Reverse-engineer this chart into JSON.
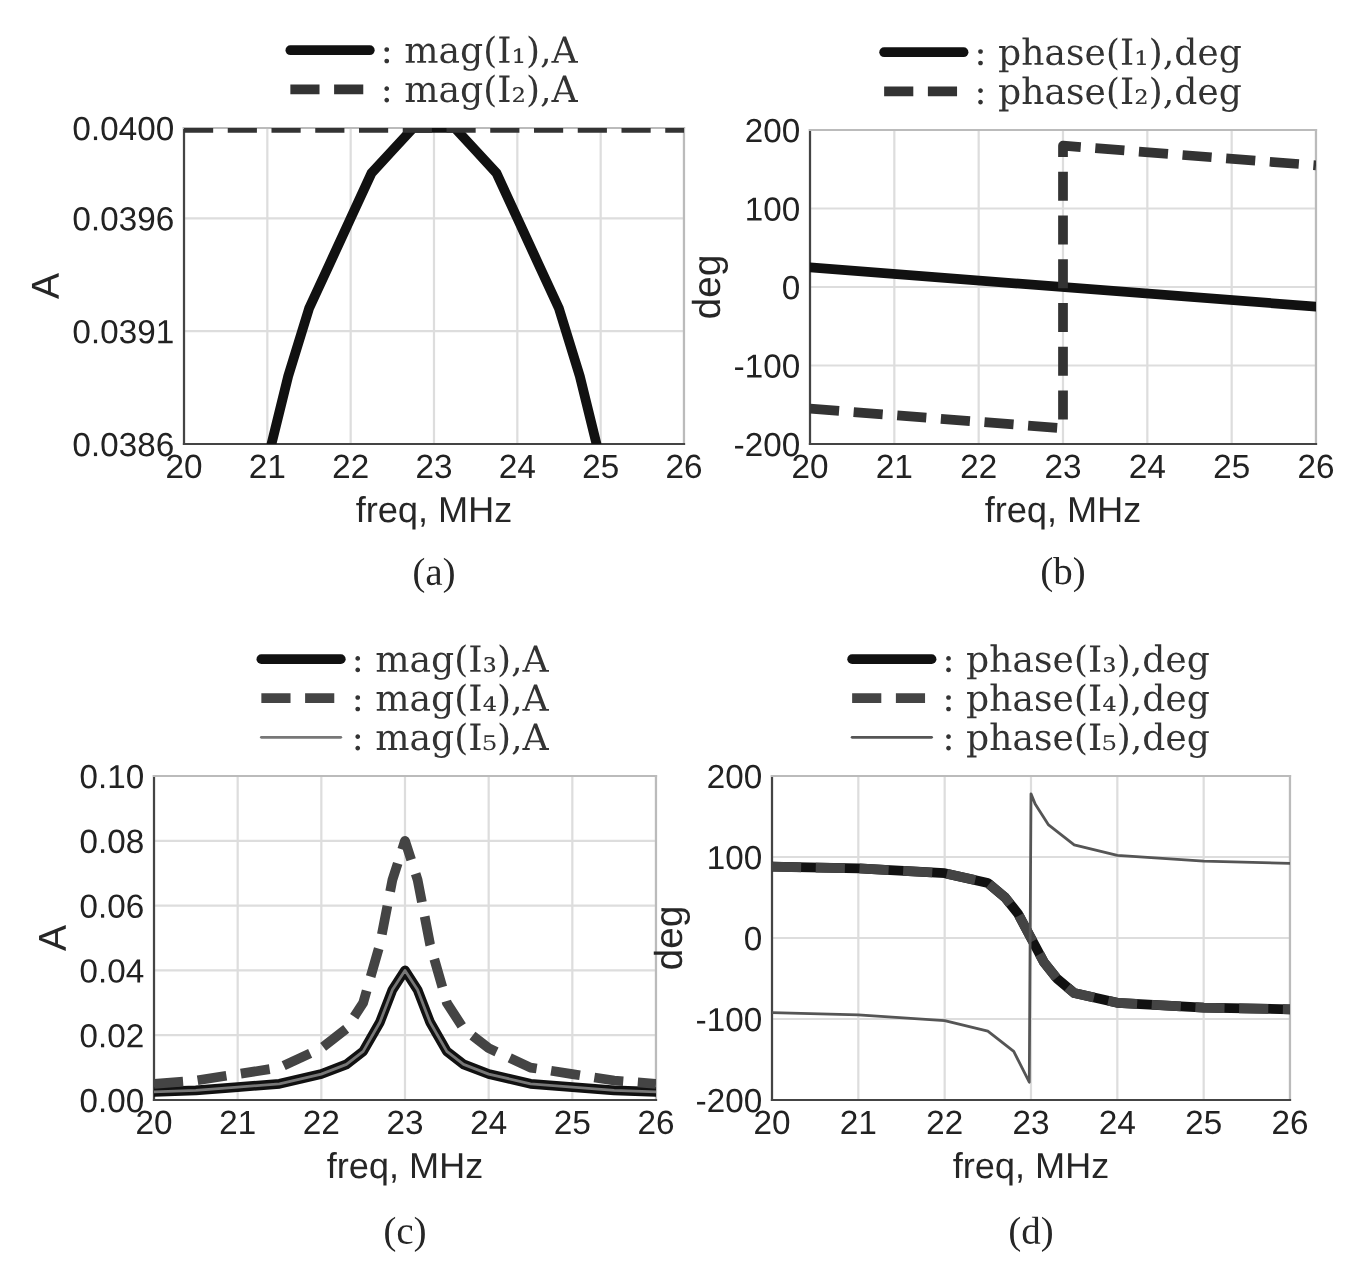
{
  "chart_data": [
    {
      "type": "line",
      "xlabel": "freq, MHz",
      "ylabel": "A",
      "annotations": [
        "(a)"
      ],
      "xlim": [
        20,
        26
      ],
      "xticks": [
        20,
        21,
        22,
        23,
        24,
        25,
        26
      ],
      "ylim": [
        0.0386,
        0.04
      ],
      "yticks": [
        0.0386,
        0.0391,
        0.0396,
        {
          "value": 0.04,
          "label": "0.0400"
        }
      ],
      "grid": true,
      "legend": "top",
      "series": [
        {
          "name": ": mag(I₁),A",
          "color": "#111111",
          "line_style": "solid",
          "x": [
            21.05,
            21.25,
            21.5,
            21.75,
            22,
            22.25,
            22.5,
            22.75,
            23,
            23.25,
            23.5,
            23.75,
            24,
            24.25,
            24.5,
            24.75,
            24.95
          ],
          "values": [
            0.0386,
            0.0389,
            0.0392,
            0.0394,
            0.0396,
            0.0398,
            0.0399,
            0.04,
            0.04,
            0.04,
            0.0399,
            0.0398,
            0.0396,
            0.0394,
            0.0392,
            0.0389,
            0.0386
          ]
        },
        {
          "name": ": mag(I₂),A",
          "color": "#333333",
          "line_style": "dashed",
          "x": [
            20,
            26
          ],
          "values": [
            0.04,
            0.04
          ]
        }
      ]
    },
    {
      "type": "line",
      "xlabel": "freq, MHz",
      "ylabel": "deg",
      "annotations": [
        "(b)"
      ],
      "xlim": [
        20,
        26
      ],
      "xticks": [
        20,
        21,
        22,
        23,
        24,
        25,
        26
      ],
      "ylim": [
        -200,
        200
      ],
      "yticks": [
        -200,
        -100,
        0,
        100,
        200
      ],
      "grid": true,
      "legend": "top",
      "series": [
        {
          "name": ": phase(I₁),deg",
          "color": "#111111",
          "line_style": "solid",
          "x": [
            20,
            26
          ],
          "values": [
            25,
            -25
          ]
        },
        {
          "name": ": phase(I₂),deg",
          "color": "#333333",
          "line_style": "dashed",
          "x": [
            20,
            23,
            23,
            26
          ],
          "values": [
            -155,
            -180,
            180,
            155
          ]
        }
      ]
    },
    {
      "type": "line",
      "xlabel": "freq, MHz",
      "ylabel": "A",
      "annotations": [
        "(c)"
      ],
      "xlim": [
        20,
        26
      ],
      "xticks": [
        20,
        21,
        22,
        23,
        24,
        25,
        26
      ],
      "ylim": [
        0,
        0.1
      ],
      "yticks": [
        {
          "value": 0,
          "label": "0.00"
        },
        0.02,
        0.04,
        0.06,
        0.08,
        {
          "value": 0.1,
          "label": "0.10"
        }
      ],
      "grid": true,
      "legend": "top",
      "series": [
        {
          "name": ": mag(I₃),A",
          "color": "#111111",
          "line_style": "solid",
          "x": [
            20,
            20.5,
            21,
            21.5,
            22,
            22.3,
            22.5,
            22.7,
            22.85,
            23,
            23.15,
            23.3,
            23.5,
            23.7,
            24,
            24.5,
            25,
            25.5,
            26
          ],
          "values": [
            0.0025,
            0.003,
            0.004,
            0.005,
            0.008,
            0.011,
            0.015,
            0.024,
            0.034,
            0.04,
            0.034,
            0.024,
            0.015,
            0.011,
            0.008,
            0.005,
            0.004,
            0.003,
            0.0025
          ]
        },
        {
          "name": ": mag(I₄),A",
          "color": "#444444",
          "line_style": "dashed",
          "x": [
            20,
            20.5,
            21,
            21.5,
            22,
            22.3,
            22.5,
            22.7,
            22.85,
            23,
            23.15,
            23.3,
            23.5,
            23.7,
            24,
            24.5,
            25,
            25.5,
            26
          ],
          "values": [
            0.005,
            0.006,
            0.008,
            0.01,
            0.016,
            0.022,
            0.03,
            0.048,
            0.068,
            0.08,
            0.068,
            0.048,
            0.03,
            0.022,
            0.016,
            0.01,
            0.008,
            0.006,
            0.005
          ]
        },
        {
          "name": ": mag(I₅),A",
          "color": "#777777",
          "line_style": "solid",
          "x": [
            20,
            20.5,
            21,
            21.5,
            22,
            22.3,
            22.5,
            22.7,
            22.85,
            23,
            23.15,
            23.3,
            23.5,
            23.7,
            24,
            24.5,
            25,
            25.5,
            26
          ],
          "values": [
            0.0025,
            0.003,
            0.004,
            0.005,
            0.008,
            0.011,
            0.015,
            0.024,
            0.034,
            0.04,
            0.034,
            0.024,
            0.015,
            0.011,
            0.008,
            0.005,
            0.004,
            0.003,
            0.0025
          ]
        }
      ]
    },
    {
      "type": "line",
      "xlabel": "freq, MHz",
      "ylabel": "deg",
      "annotations": [
        "(d)"
      ],
      "xlim": [
        20,
        26
      ],
      "xticks": [
        20,
        21,
        22,
        23,
        24,
        25,
        26
      ],
      "ylim": [
        -200,
        200
      ],
      "yticks": [
        -200,
        -100,
        0,
        100,
        200
      ],
      "grid": true,
      "legend": "top",
      "series": [
        {
          "name": ": phase(I₃),deg",
          "color": "#111111",
          "line_style": "solid",
          "x": [
            20,
            21,
            22,
            22.5,
            22.7,
            22.85,
            23,
            23.15,
            23.3,
            23.5,
            24,
            25,
            26
          ],
          "values": [
            88,
            86,
            80,
            68,
            50,
            30,
            0,
            -30,
            -50,
            -68,
            -80,
            -86,
            -88
          ]
        },
        {
          "name": ": phase(I₄),deg",
          "color": "#444444",
          "line_style": "dashed",
          "x": [
            20,
            21,
            22,
            22.5,
            22.7,
            22.85,
            23,
            23.15,
            23.3,
            23.5,
            24,
            25,
            26
          ],
          "values": [
            88,
            86,
            80,
            68,
            50,
            30,
            0,
            -30,
            -50,
            -68,
            -80,
            -86,
            -88
          ]
        },
        {
          "name": ": phase(I₅),deg",
          "color": "#555555",
          "line_style": "solid",
          "x": [
            20,
            21,
            22,
            22.5,
            22.8,
            22.98,
            23,
            23.05,
            23.2,
            23.5,
            24,
            25,
            26
          ],
          "values": [
            -92,
            -95,
            -102,
            -115,
            -140,
            -178,
            178,
            165,
            140,
            115,
            102,
            95,
            92
          ]
        }
      ]
    }
  ]
}
